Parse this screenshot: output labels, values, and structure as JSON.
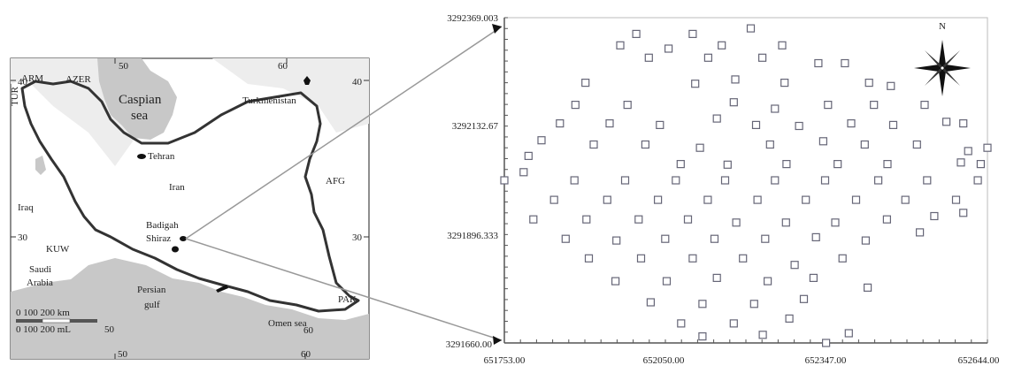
{
  "inset_map": {
    "top_ticks": [
      "50",
      "60"
    ],
    "left_ticks": [
      "40",
      "30"
    ],
    "right_ticks": [
      "40",
      "30"
    ],
    "bottom_ticks": [
      "50",
      "60"
    ],
    "places": {
      "arm": "ARM",
      "azer": "AZER",
      "tur": "TUR",
      "caspian_1": "Caspian",
      "caspian_2": "sea",
      "turkmenistan": "Turkmenistan",
      "tehran": "Tehran",
      "iran": "Iran",
      "afg": "AFG",
      "iraq": "Iraq",
      "badigah": "Badigah",
      "shiraz": "Shiraz",
      "kuw": "KUW",
      "saudi_1": "Saudi",
      "saudi_2": "Arabia",
      "persian_1": "Persian",
      "persian_2": "gulf",
      "pak": "PAK",
      "omen_sea": "Omen sea"
    },
    "scale_km": "0  100  200 km",
    "scale_mi": "0    100  200 mL"
  },
  "sample_plot": {
    "north_label": "N",
    "y_ticks": [
      "3292369.003",
      "3292132.67",
      "3291896.333",
      "3291660.00"
    ],
    "x_ticks": [
      "651753.00",
      "652050.00",
      "652347.00",
      "652644.00"
    ],
    "x_range": [
      651753.0,
      652644.0
    ],
    "y_range": [
      3291660.0,
      3292369.003
    ],
    "sample_points": [
      [
        0.273,
        0.95
      ],
      [
        0.39,
        0.95
      ],
      [
        0.51,
        0.967
      ],
      [
        0.24,
        0.915
      ],
      [
        0.34,
        0.905
      ],
      [
        0.45,
        0.915
      ],
      [
        0.575,
        0.915
      ],
      [
        0.299,
        0.877
      ],
      [
        0.422,
        0.877
      ],
      [
        0.534,
        0.877
      ],
      [
        0.65,
        0.86
      ],
      [
        0.705,
        0.86
      ],
      [
        0.168,
        0.8
      ],
      [
        0.395,
        0.797
      ],
      [
        0.478,
        0.81
      ],
      [
        0.58,
        0.8
      ],
      [
        0.755,
        0.8
      ],
      [
        0.8,
        0.79
      ],
      [
        0.147,
        0.732
      ],
      [
        0.255,
        0.732
      ],
      [
        0.475,
        0.74
      ],
      [
        0.56,
        0.72
      ],
      [
        0.67,
        0.732
      ],
      [
        0.765,
        0.732
      ],
      [
        0.87,
        0.732
      ],
      [
        0.115,
        0.675
      ],
      [
        0.218,
        0.675
      ],
      [
        0.322,
        0.67
      ],
      [
        0.44,
        0.69
      ],
      [
        0.521,
        0.67
      ],
      [
        0.61,
        0.667
      ],
      [
        0.718,
        0.675
      ],
      [
        0.805,
        0.67
      ],
      [
        0.915,
        0.68
      ],
      [
        0.95,
        0.675
      ],
      [
        0.077,
        0.623
      ],
      [
        0.185,
        0.61
      ],
      [
        0.292,
        0.61
      ],
      [
        0.405,
        0.6
      ],
      [
        0.55,
        0.61
      ],
      [
        0.66,
        0.62
      ],
      [
        0.746,
        0.61
      ],
      [
        0.854,
        0.61
      ],
      [
        0.96,
        0.59
      ],
      [
        0.05,
        0.575
      ],
      [
        0.365,
        0.55
      ],
      [
        0.462,
        0.548
      ],
      [
        0.584,
        0.55
      ],
      [
        0.69,
        0.55
      ],
      [
        0.793,
        0.55
      ],
      [
        0.945,
        0.555
      ],
      [
        0.986,
        0.55
      ],
      [
        0.04,
        0.525
      ],
      [
        0.145,
        0.5
      ],
      [
        0.25,
        0.5
      ],
      [
        0.355,
        0.5
      ],
      [
        0.457,
        0.5
      ],
      [
        0.56,
        0.5
      ],
      [
        0.664,
        0.5
      ],
      [
        0.774,
        0.5
      ],
      [
        0.875,
        0.5
      ],
      [
        0.98,
        0.5
      ],
      [
        0.103,
        0.44
      ],
      [
        0.213,
        0.44
      ],
      [
        0.318,
        0.44
      ],
      [
        0.421,
        0.44
      ],
      [
        0.524,
        0.44
      ],
      [
        0.624,
        0.44
      ],
      [
        0.728,
        0.44
      ],
      [
        0.83,
        0.44
      ],
      [
        0.935,
        0.44
      ],
      [
        0.06,
        0.38
      ],
      [
        0.17,
        0.38
      ],
      [
        0.278,
        0.38
      ],
      [
        0.38,
        0.38
      ],
      [
        0.48,
        0.37
      ],
      [
        0.583,
        0.37
      ],
      [
        0.685,
        0.37
      ],
      [
        0.792,
        0.38
      ],
      [
        0.89,
        0.39
      ],
      [
        0.95,
        0.4
      ],
      [
        0.127,
        0.32
      ],
      [
        0.232,
        0.315
      ],
      [
        0.333,
        0.32
      ],
      [
        0.435,
        0.32
      ],
      [
        0.54,
        0.32
      ],
      [
        0.645,
        0.325
      ],
      [
        0.748,
        0.315
      ],
      [
        0.86,
        0.34
      ],
      [
        0.175,
        0.26
      ],
      [
        0.283,
        0.26
      ],
      [
        0.39,
        0.26
      ],
      [
        0.494,
        0.26
      ],
      [
        0.601,
        0.24
      ],
      [
        0.7,
        0.26
      ],
      [
        0.23,
        0.19
      ],
      [
        0.336,
        0.19
      ],
      [
        0.44,
        0.2
      ],
      [
        0.545,
        0.19
      ],
      [
        0.64,
        0.2
      ],
      [
        0.752,
        0.17
      ],
      [
        0.303,
        0.125
      ],
      [
        0.41,
        0.12
      ],
      [
        0.517,
        0.12
      ],
      [
        0.62,
        0.135
      ],
      [
        0.366,
        0.06
      ],
      [
        0.475,
        0.06
      ],
      [
        0.59,
        0.075
      ],
      [
        0.41,
        0.02
      ],
      [
        0.535,
        0.025
      ],
      [
        0.713,
        0.03
      ],
      [
        0.0,
        0.5
      ],
      [
        1.0,
        0.6
      ],
      [
        0.666,
        0.0
      ]
    ]
  }
}
